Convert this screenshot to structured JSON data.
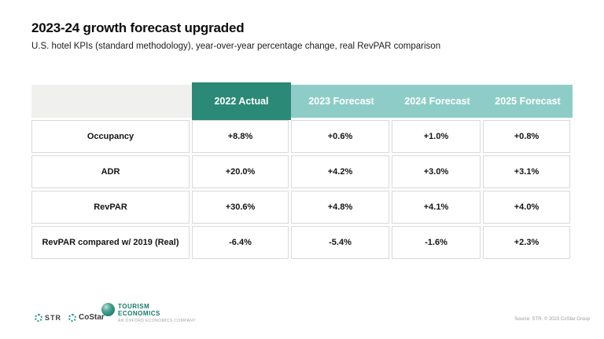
{
  "slide": {
    "title": "2023-24 growth forecast upgraded",
    "subtitle": "U.S. hotel KPIs (standard methodology), year-over-year percentage change, real RevPAR comparison"
  },
  "table": {
    "header": [
      "2022 Actual",
      "2023 Forecast",
      "2024 Forecast",
      "2025 Forecast"
    ],
    "rows": [
      {
        "label": "Occupancy",
        "values": [
          "+8.8%",
          "+0.6%",
          "+1.0%",
          "+0.8%"
        ]
      },
      {
        "label": "ADR",
        "values": [
          "+20.0%",
          "+4.2%",
          "+3.0%",
          "+3.1%"
        ]
      },
      {
        "label": "RevPAR",
        "values": [
          "+30.6%",
          "+4.8%",
          "+4.1%",
          "+4.0%"
        ]
      },
      {
        "label": "RevPAR compared w/ 2019 (Real)",
        "values": [
          "-6.4%",
          "-5.4%",
          "-1.6%",
          "+2.3%"
        ]
      }
    ]
  },
  "chart_data": {
    "type": "table",
    "title": "2023-24 growth forecast upgraded",
    "columns": [
      "",
      "2022 Actual",
      "2023 Forecast",
      "2024 Forecast",
      "2025 Forecast"
    ],
    "rows": [
      [
        "Occupancy",
        "+8.8%",
        "+0.6%",
        "+1.0%",
        "+0.8%"
      ],
      [
        "ADR",
        "+20.0%",
        "+4.2%",
        "+3.0%",
        "+3.1%"
      ],
      [
        "RevPAR",
        "+30.6%",
        "+4.8%",
        "+4.1%",
        "+4.0%"
      ],
      [
        "RevPAR compared w/ 2019 (Real)",
        "-6.4%",
        "-5.4%",
        "-1.6%",
        "+2.3%"
      ]
    ]
  },
  "footer": {
    "str_label": "STR",
    "costar_label": "CoStar",
    "tourism_line1": "TOURISM",
    "tourism_line2": "ECONOMICS",
    "tourism_sub": "AN OXFORD ECONOMICS COMPANY",
    "source": "Source: STR. © 2023 CoStar Group"
  },
  "colors": {
    "accent_dark": "#2b8977",
    "accent_light": "#8ecdc7",
    "header_gray": "#f0f0ef",
    "cell_border": "#d9d9d9",
    "logo_teal": "#169a88"
  }
}
